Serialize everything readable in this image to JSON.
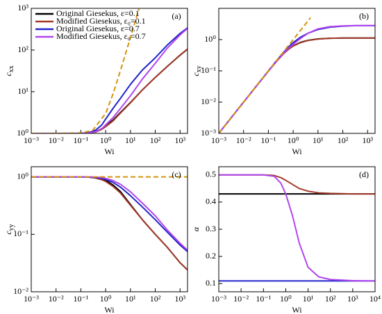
{
  "chart_data": [
    {
      "type": "line",
      "label": "(a)",
      "xlabel": "Wi",
      "ylabel": "c",
      "ylabel_sub": "xx",
      "xscale": "log",
      "yscale": "log",
      "xlim": [
        0.001,
        2000
      ],
      "ylim": [
        1,
        1000
      ],
      "xticks": [
        {
          "value": 0.001,
          "label": "10⁻³"
        },
        {
          "value": 0.01,
          "label": "10⁻²"
        },
        {
          "value": 0.1,
          "label": "10⁻¹"
        },
        {
          "value": 1,
          "label": "10⁰"
        },
        {
          "value": 10,
          "label": "10¹"
        },
        {
          "value": 100,
          "label": "10²"
        },
        {
          "value": 1000,
          "label": "10³"
        }
      ],
      "yticks": [
        {
          "value": 1,
          "label": "10⁰"
        },
        {
          "value": 10,
          "label": "10¹"
        },
        {
          "value": 100,
          "label": "10²"
        },
        {
          "value": 1000,
          "label": "10³"
        }
      ],
      "legend": "upper left",
      "series": [
        {
          "name": "Original Giesekus, ε=0.1",
          "color": "#000000",
          "x": [
            0.001,
            0.01,
            0.1,
            0.2,
            0.4,
            0.7,
            1,
            2,
            4,
            10,
            30,
            100,
            300,
            1000,
            2000
          ],
          "values": [
            1,
            1,
            1,
            1.02,
            1.1,
            1.3,
            1.5,
            2.1,
            3.2,
            5.5,
            11,
            22,
            40,
            75,
            105
          ]
        },
        {
          "name": "Modified Giesekus, ε₀=0.1",
          "color": "#a33a2a",
          "x": [
            0.001,
            0.01,
            0.1,
            0.2,
            0.4,
            0.7,
            1,
            2,
            4,
            10,
            30,
            100,
            300,
            1000,
            2000
          ],
          "values": [
            1,
            1,
            1,
            1.02,
            1.08,
            1.25,
            1.45,
            2.0,
            3.1,
            5.4,
            11,
            22,
            40,
            76,
            106
          ]
        },
        {
          "name": "Original Giesekus, ε=0.7",
          "color": "#2222cc",
          "x": [
            0.001,
            0.01,
            0.1,
            0.2,
            0.4,
            0.7,
            1,
            2,
            4,
            10,
            30,
            100,
            300,
            1000,
            2000
          ],
          "values": [
            1,
            1,
            1,
            1.03,
            1.2,
            1.6,
            2.2,
            4,
            7,
            15,
            33,
            65,
            130,
            250,
            340
          ]
        },
        {
          "name": "Modified Giesekus, ε₀=0.7",
          "color": "#b044ee",
          "x": [
            0.001,
            0.01,
            0.1,
            0.2,
            0.4,
            0.7,
            1,
            2,
            4,
            10,
            30,
            100,
            300,
            1000,
            2000
          ],
          "values": [
            1,
            1,
            1,
            1.02,
            1.1,
            1.3,
            1.6,
            2.4,
            4,
            8,
            20,
            48,
            110,
            230,
            330
          ]
        },
        {
          "color": "#d4920a",
          "dash": true,
          "x": [
            0.001,
            0.01,
            0.1,
            0.3,
            1,
            2,
            4,
            7,
            10,
            15,
            22
          ],
          "values": [
            1,
            1,
            1.02,
            1.18,
            3,
            9,
            33,
            99,
            201,
            451,
            969
          ]
        }
      ]
    },
    {
      "type": "line",
      "label": "(b)",
      "xlabel": "Wi",
      "ylabel": "c",
      "ylabel_sub": "xy",
      "xscale": "log",
      "yscale": "log",
      "xlim": [
        0.001,
        2000
      ],
      "ylim": [
        0.001,
        10
      ],
      "xticks": [
        {
          "value": 0.001,
          "label": "10⁻³"
        },
        {
          "value": 0.01,
          "label": "10⁻²"
        },
        {
          "value": 0.1,
          "label": "10⁻¹"
        },
        {
          "value": 1,
          "label": "10⁰"
        },
        {
          "value": 10,
          "label": "10¹"
        },
        {
          "value": 100,
          "label": "10²"
        },
        {
          "value": 1000,
          "label": "10³"
        }
      ],
      "yticks": [
        {
          "value": 0.001,
          "label": "10⁻³"
        },
        {
          "value": 0.01,
          "label": "10⁻²"
        },
        {
          "value": 0.1,
          "label": "10⁻¹"
        },
        {
          "value": 1,
          "label": "10⁰"
        }
      ],
      "series": [
        {
          "color": "#000000",
          "x": [
            0.001,
            0.01,
            0.1,
            0.2,
            0.4,
            0.7,
            1,
            2,
            4,
            10,
            30,
            100,
            300,
            1000,
            2000
          ],
          "values": [
            0.001,
            0.01,
            0.098,
            0.19,
            0.35,
            0.52,
            0.63,
            0.82,
            0.95,
            1.05,
            1.1,
            1.12,
            1.12,
            1.12,
            1.12
          ]
        },
        {
          "color": "#a33a2a",
          "x": [
            0.001,
            0.01,
            0.1,
            0.2,
            0.4,
            0.7,
            1,
            2,
            4,
            10,
            30,
            100,
            300,
            1000,
            2000
          ],
          "values": [
            0.001,
            0.01,
            0.098,
            0.19,
            0.35,
            0.51,
            0.62,
            0.8,
            0.94,
            1.04,
            1.1,
            1.12,
            1.12,
            1.12,
            1.12
          ]
        },
        {
          "color": "#2222cc",
          "x": [
            0.001,
            0.01,
            0.1,
            0.2,
            0.4,
            0.7,
            1,
            2,
            4,
            10,
            30,
            100,
            300,
            1000,
            2000
          ],
          "values": [
            0.001,
            0.01,
            0.1,
            0.2,
            0.38,
            0.62,
            0.8,
            1.2,
            1.6,
            2.1,
            2.5,
            2.7,
            2.8,
            2.8,
            2.8
          ]
        },
        {
          "color": "#b044ee",
          "x": [
            0.001,
            0.01,
            0.1,
            0.2,
            0.4,
            0.7,
            1,
            2,
            4,
            10,
            30,
            100,
            300,
            1000,
            2000
          ],
          "values": [
            0.001,
            0.01,
            0.099,
            0.19,
            0.36,
            0.56,
            0.7,
            1.1,
            1.6,
            2.2,
            2.6,
            2.75,
            2.8,
            2.8,
            2.8
          ]
        },
        {
          "color": "#d4920a",
          "dash": true,
          "x": [
            0.001,
            0.01,
            0.1,
            1,
            2,
            4,
            5
          ],
          "values": [
            0.001,
            0.01,
            0.1,
            1,
            2,
            4,
            5
          ]
        }
      ]
    },
    {
      "type": "line",
      "label": "(c)",
      "xlabel": "Wi",
      "ylabel": "c",
      "ylabel_sub": "yy",
      "xscale": "log",
      "yscale": "log",
      "xlim": [
        0.001,
        2000
      ],
      "ylim": [
        0.01,
        1.5
      ],
      "xticks": [
        {
          "value": 0.001,
          "label": "10⁻³"
        },
        {
          "value": 0.01,
          "label": "10⁻²"
        },
        {
          "value": 0.1,
          "label": "10⁻¹"
        },
        {
          "value": 1,
          "label": "10⁰"
        },
        {
          "value": 10,
          "label": "10¹"
        },
        {
          "value": 100,
          "label": "10²"
        },
        {
          "value": 1000,
          "label": "10³"
        }
      ],
      "yticks": [
        {
          "value": 0.01,
          "label": "10⁻²"
        },
        {
          "value": 0.1,
          "label": "10⁻¹"
        },
        {
          "value": 1,
          "label": "10⁰"
        }
      ],
      "series": [
        {
          "color": "#000000",
          "x": [
            0.001,
            0.01,
            0.1,
            0.2,
            0.4,
            0.7,
            1,
            2,
            4,
            10,
            30,
            100,
            300,
            1000,
            2000
          ],
          "values": [
            1,
            1,
            1,
            0.99,
            0.96,
            0.92,
            0.87,
            0.72,
            0.55,
            0.33,
            0.18,
            0.1,
            0.06,
            0.032,
            0.024
          ]
        },
        {
          "color": "#a33a2a",
          "x": [
            0.001,
            0.01,
            0.1,
            0.2,
            0.4,
            0.7,
            1,
            2,
            4,
            10,
            30,
            100,
            300,
            1000,
            2000
          ],
          "values": [
            1,
            1,
            1,
            0.99,
            0.95,
            0.89,
            0.83,
            0.68,
            0.52,
            0.32,
            0.18,
            0.1,
            0.06,
            0.032,
            0.024
          ]
        },
        {
          "color": "#2222cc",
          "x": [
            0.001,
            0.01,
            0.1,
            0.2,
            0.4,
            0.7,
            1,
            2,
            4,
            10,
            30,
            100,
            300,
            1000,
            2000
          ],
          "values": [
            1,
            1,
            1,
            0.99,
            0.97,
            0.94,
            0.9,
            0.8,
            0.66,
            0.47,
            0.3,
            0.18,
            0.11,
            0.065,
            0.05
          ]
        },
        {
          "color": "#b044ee",
          "x": [
            0.001,
            0.01,
            0.1,
            0.2,
            0.4,
            0.7,
            1,
            2,
            4,
            10,
            30,
            100,
            300,
            1000,
            2000
          ],
          "values": [
            1,
            1,
            1,
            1,
            0.99,
            0.97,
            0.94,
            0.86,
            0.74,
            0.55,
            0.35,
            0.21,
            0.12,
            0.07,
            0.053
          ]
        },
        {
          "color": "#d4920a",
          "dash": true,
          "x": [
            0.001,
            2000
          ],
          "values": [
            1,
            1
          ]
        }
      ]
    },
    {
      "type": "line",
      "label": "(d)",
      "xlabel": "Wi",
      "ylabel": "α",
      "xscale": "log",
      "yscale": "linear",
      "xlim": [
        0.001,
        10000
      ],
      "ylim": [
        0.07,
        0.53
      ],
      "xticks": [
        {
          "value": 0.001,
          "label": "10⁻³"
        },
        {
          "value": 0.01,
          "label": "10⁻²"
        },
        {
          "value": 0.1,
          "label": "10⁻¹"
        },
        {
          "value": 1,
          "label": "10⁰"
        },
        {
          "value": 10,
          "label": "10¹"
        },
        {
          "value": 100,
          "label": "10²"
        },
        {
          "value": 1000,
          "label": "10³"
        },
        {
          "value": 10000,
          "label": "10⁴"
        }
      ],
      "yticks": [
        0.1,
        0.2,
        0.3,
        0.4,
        0.5
      ],
      "series": [
        {
          "color": "#000000",
          "x": [
            0.001,
            0.01,
            0.1,
            0.3,
            0.6,
            1,
            2,
            4,
            10,
            30,
            100,
            1000,
            10000
          ],
          "values": [
            0.43,
            0.43,
            0.43,
            0.43,
            0.43,
            0.43,
            0.43,
            0.43,
            0.43,
            0.43,
            0.43,
            0.43,
            0.43
          ]
        },
        {
          "color": "#a33a2a",
          "x": [
            0.001,
            0.01,
            0.1,
            0.3,
            0.6,
            1,
            2,
            4,
            10,
            30,
            100,
            1000,
            10000
          ],
          "values": [
            0.5,
            0.5,
            0.5,
            0.498,
            0.49,
            0.48,
            0.465,
            0.45,
            0.44,
            0.434,
            0.432,
            0.43,
            0.43
          ]
        },
        {
          "color": "#2222cc",
          "x": [
            0.001,
            0.01,
            0.1,
            0.3,
            0.6,
            1,
            2,
            4,
            10,
            30,
            100,
            1000,
            10000
          ],
          "values": [
            0.11,
            0.11,
            0.11,
            0.11,
            0.11,
            0.11,
            0.11,
            0.11,
            0.11,
            0.11,
            0.11,
            0.11,
            0.11
          ]
        },
        {
          "color": "#b044ee",
          "x": [
            0.001,
            0.01,
            0.1,
            0.3,
            0.6,
            1,
            2,
            4,
            10,
            30,
            100,
            1000,
            10000
          ],
          "values": [
            0.5,
            0.5,
            0.5,
            0.495,
            0.47,
            0.43,
            0.35,
            0.25,
            0.16,
            0.125,
            0.115,
            0.111,
            0.11
          ]
        }
      ]
    }
  ]
}
